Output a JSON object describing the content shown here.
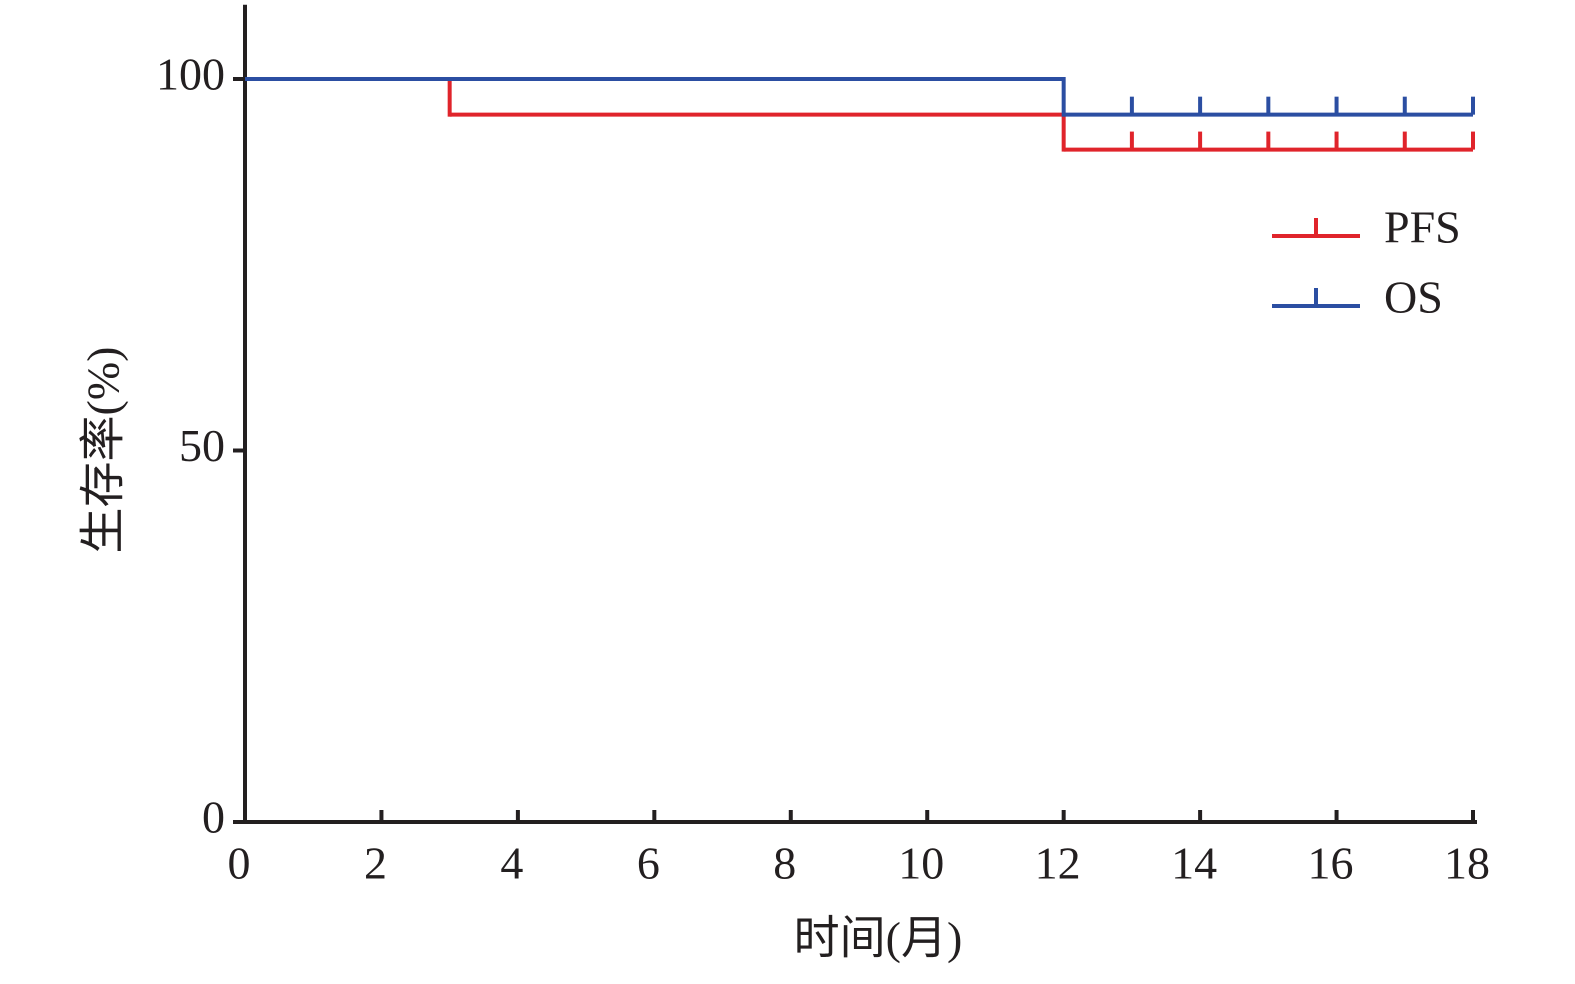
{
  "chart_data": {
    "type": "step",
    "xlabel": "时间(月)",
    "ylabel": "生存率(%)",
    "xlim": [
      0,
      18
    ],
    "ylim": [
      0,
      110
    ],
    "xticks": [
      0,
      2,
      4,
      6,
      8,
      10,
      12,
      14,
      16,
      18
    ],
    "yticks": [
      0,
      50,
      100
    ],
    "legend": "upper right",
    "series": [
      {
        "name": "PFS",
        "color": "#e0242b",
        "x": [
          0,
          3,
          12,
          18
        ],
        "values": [
          100,
          95.2,
          90.5,
          90.5
        ],
        "censor_x": [
          13,
          14,
          15,
          16,
          17,
          18
        ]
      },
      {
        "name": "OS",
        "color": "#2b4ea2",
        "x": [
          0,
          12,
          18
        ],
        "values": [
          100,
          95.2,
          95.2
        ],
        "censor_x": [
          13,
          14,
          15,
          16,
          17,
          18
        ]
      }
    ]
  }
}
